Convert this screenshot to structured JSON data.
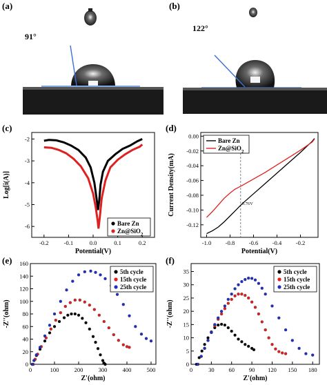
{
  "panels": {
    "a": {
      "label": "(a)",
      "angle_text": "91°"
    },
    "b": {
      "label": "(b)",
      "angle_text": "122°"
    }
  },
  "chart_data": [
    {
      "id": "c",
      "panel_label": "(c)",
      "type": "line",
      "xlabel": "Potential(V)",
      "ylabel": "Log[i(A)]",
      "xlim": [
        -0.25,
        0.25
      ],
      "ylim": [
        -6.5,
        -1.7
      ],
      "xticks": [
        -0.2,
        -0.1,
        0.0,
        0.1,
        0.2
      ],
      "xtick_labels": [
        "-0.2",
        "-0.1",
        "0.0",
        "0.1",
        "0.2"
      ],
      "yticks": [
        -6,
        -5,
        -4,
        -3,
        -2
      ],
      "ytick_labels": [
        "-6",
        "-5",
        "-4",
        "-3",
        "-2"
      ],
      "legend_position": "bottom-right",
      "series": [
        {
          "name": "Bare Zn",
          "color": "#000000",
          "x": [
            -0.2,
            -0.18,
            -0.15,
            -0.12,
            -0.09,
            -0.06,
            -0.03,
            -0.01,
            0.005,
            0.015,
            0.02,
            0.025,
            0.03,
            0.04,
            0.06,
            0.09,
            0.12,
            0.15,
            0.18,
            0.2
          ],
          "y": [
            -2.08,
            -2.04,
            -2.06,
            -2.15,
            -2.3,
            -2.5,
            -2.85,
            -3.3,
            -4.0,
            -4.8,
            -5.25,
            -4.8,
            -4.1,
            -3.5,
            -3.0,
            -2.7,
            -2.45,
            -2.3,
            -2.1,
            -2.0
          ]
        },
        {
          "name": "Zn@SiO2",
          "color": "#e02020",
          "x": [
            -0.2,
            -0.17,
            -0.14,
            -0.11,
            -0.08,
            -0.05,
            -0.02,
            0.0,
            0.01,
            0.018,
            0.022,
            0.027,
            0.035,
            0.05,
            0.07,
            0.1,
            0.13,
            0.16,
            0.19,
            0.2
          ],
          "y": [
            -2.38,
            -2.4,
            -2.5,
            -2.65,
            -2.9,
            -3.25,
            -3.8,
            -4.5,
            -5.1,
            -5.7,
            -6.1,
            -5.6,
            -4.7,
            -3.9,
            -3.3,
            -2.95,
            -2.7,
            -2.5,
            -2.35,
            -2.25
          ]
        }
      ]
    },
    {
      "id": "d",
      "panel_label": "(d)",
      "type": "line",
      "xlabel": "Potential(V)",
      "ylabel": "Current Density(mA)",
      "xlim": [
        -1.05,
        -0.05
      ],
      "ylim": [
        -0.137,
        0.005
      ],
      "xticks": [
        -1.0,
        -0.8,
        -0.6,
        -0.4,
        -0.2
      ],
      "xtick_labels": [
        "-1.0",
        "-0.8",
        "-0.6",
        "-0.4",
        "-0.2"
      ],
      "yticks": [
        0.0,
        -0.02,
        -0.04,
        -0.06,
        -0.08,
        -0.1,
        -0.12
      ],
      "ytick_labels": [
        "0.00",
        "-0.02",
        "-0.04",
        "-0.06",
        "-0.08",
        "-0.10",
        "-0.12"
      ],
      "legend_position": "top-left",
      "annotation": {
        "text": "0.76V",
        "x": -0.71
      },
      "series": [
        {
          "name": "Bare Zn",
          "color": "#000000",
          "x": [
            -1.0,
            -0.95,
            -0.9,
            -0.85,
            -0.8,
            -0.75,
            -0.7,
            -0.6,
            -0.5,
            -0.4,
            -0.3,
            -0.2,
            -0.1,
            -0.08
          ],
          "y": [
            -0.132,
            -0.128,
            -0.123,
            -0.116,
            -0.108,
            -0.1,
            -0.092,
            -0.078,
            -0.064,
            -0.05,
            -0.036,
            -0.022,
            -0.007,
            -0.003
          ]
        },
        {
          "name": "Zn@SiO2",
          "color": "#e02020",
          "x": [
            -1.0,
            -0.95,
            -0.9,
            -0.85,
            -0.8,
            -0.76,
            -0.7,
            -0.6,
            -0.5,
            -0.4,
            -0.3,
            -0.2,
            -0.1,
            -0.08
          ],
          "y": [
            -0.11,
            -0.102,
            -0.093,
            -0.084,
            -0.077,
            -0.072,
            -0.067,
            -0.058,
            -0.049,
            -0.039,
            -0.029,
            -0.019,
            -0.008,
            -0.004
          ]
        }
      ]
    },
    {
      "id": "e",
      "panel_label": "(e)",
      "type": "scatter",
      "xlabel": "Z'(ohm)",
      "ylabel": "-Z''(ohm)",
      "xlim": [
        0,
        520
      ],
      "ylim": [
        0,
        160
      ],
      "xticks": [
        0,
        100,
        200,
        300,
        400,
        500
      ],
      "xtick_labels": [
        "0",
        "100",
        "200",
        "300",
        "400",
        "500"
      ],
      "yticks": [
        0,
        20,
        40,
        60,
        80,
        100,
        120,
        140,
        160
      ],
      "ytick_labels": [
        "0",
        "20",
        "40",
        "60",
        "80",
        "100",
        "120",
        "140",
        "160"
      ],
      "legend_position": "top-right",
      "series": [
        {
          "name": "5th cycle",
          "color": "#000000",
          "x": [
            8,
            15,
            25,
            40,
            60,
            80,
            100,
            120,
            140,
            155,
            170,
            185,
            200,
            215,
            230,
            245,
            260,
            270,
            280,
            290,
            300,
            305,
            310
          ],
          "y": [
            0,
            6,
            14,
            24,
            37,
            50,
            60,
            68,
            74,
            78,
            80,
            80,
            78,
            73,
            66,
            56,
            44,
            35,
            25,
            15,
            6,
            2,
            0
          ]
        },
        {
          "name": "15th cycle",
          "color": "#e02020",
          "x": [
            12,
            20,
            30,
            45,
            65,
            85,
            105,
            125,
            145,
            165,
            185,
            205,
            225,
            245,
            265,
            285,
            305,
            325,
            345,
            365,
            385,
            400,
            410
          ],
          "y": [
            0,
            8,
            16,
            28,
            42,
            56,
            70,
            82,
            92,
            98,
            102,
            102,
            99,
            94,
            87,
            78,
            68,
            58,
            47,
            38,
            31,
            28,
            27
          ]
        },
        {
          "name": "25th cycle",
          "color": "#1f2ec8",
          "x": [
            10,
            15,
            25,
            40,
            60,
            80,
            100,
            125,
            150,
            175,
            200,
            225,
            250,
            270,
            290,
            310,
            335,
            360,
            385,
            410,
            435,
            460,
            480,
            500
          ],
          "y": [
            0,
            6,
            15,
            27,
            45,
            62,
            80,
            100,
            118,
            132,
            142,
            147,
            148,
            146,
            142,
            136,
            125,
            111,
            95,
            77,
            60,
            48,
            41,
            37
          ]
        }
      ]
    },
    {
      "id": "f",
      "panel_label": "(f)",
      "type": "scatter",
      "xlabel": "Z'(ohm)",
      "ylabel": "-Z''(ohm)",
      "xlim": [
        0,
        190
      ],
      "ylim": [
        0,
        38
      ],
      "xticks": [
        0,
        30,
        60,
        90,
        120,
        150,
        180
      ],
      "xtick_labels": [
        "0",
        "30",
        "60",
        "90",
        "120",
        "150",
        "180"
      ],
      "yticks": [
        0,
        5,
        10,
        15,
        20,
        25,
        30,
        35
      ],
      "ytick_labels": [
        "0",
        "5",
        "10",
        "15",
        "20",
        "25",
        "30",
        "35"
      ],
      "legend_position": "top-right",
      "series": [
        {
          "name": "5th cycle",
          "color": "#000000",
          "x": [
            8,
            12,
            16,
            20,
            25,
            30,
            35,
            40,
            45,
            50,
            55,
            60,
            65,
            70,
            75,
            80,
            85,
            90,
            93
          ],
          "y": [
            0,
            2.5,
            5,
            7.5,
            10,
            12.2,
            13.8,
            14.8,
            15.1,
            14.8,
            13.8,
            12.5,
            11,
            9.5,
            8.5,
            7.5,
            6.8,
            6,
            5.5
          ]
        },
        {
          "name": "15th cycle",
          "color": "#e02020",
          "x": [
            10,
            15,
            20,
            25,
            30,
            35,
            40,
            45,
            50,
            55,
            60,
            65,
            70,
            75,
            80,
            85,
            90,
            95,
            100,
            105,
            110,
            115,
            120,
            125,
            130,
            135,
            140
          ],
          "y": [
            0,
            3,
            6,
            9,
            12,
            14.5,
            17,
            19,
            21,
            23,
            24.5,
            25.8,
            26.5,
            26.5,
            26,
            25,
            23.5,
            21.5,
            19,
            16,
            13,
            10,
            7.5,
            5.8,
            4.8,
            4.3,
            4
          ]
        },
        {
          "name": "25th cycle",
          "color": "#1f2ec8",
          "x": [
            10,
            15,
            20,
            25,
            30,
            35,
            40,
            45,
            50,
            55,
            60,
            65,
            70,
            75,
            80,
            85,
            90,
            95,
            100,
            105,
            110,
            120,
            130,
            140,
            150,
            160,
            170,
            180
          ],
          "y": [
            0,
            3,
            6,
            9,
            12,
            15,
            17.5,
            20,
            22,
            24.5,
            26.5,
            28.5,
            30,
            31.2,
            32,
            32.5,
            32.4,
            31.8,
            30.5,
            28.7,
            26.5,
            22,
            17.5,
            13,
            9,
            6,
            4,
            3.5
          ]
        }
      ]
    }
  ]
}
